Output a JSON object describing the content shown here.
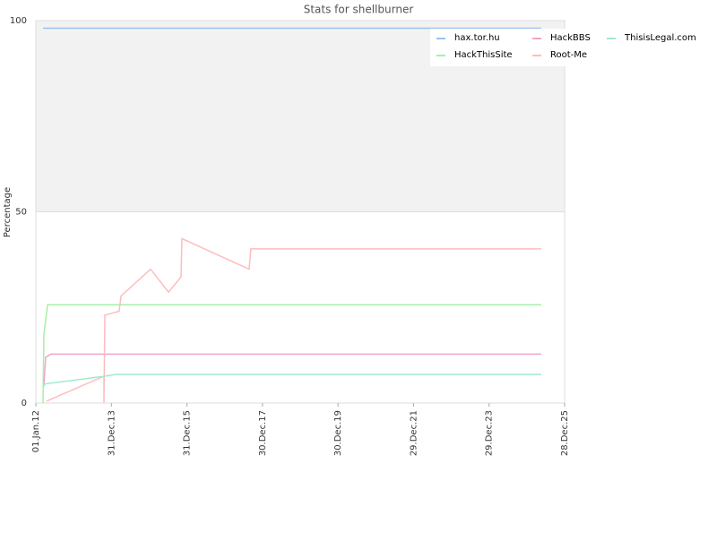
{
  "chart_data": {
    "type": "line",
    "title": "Stats for shellburner",
    "y_label": "Percentage",
    "xlim": [
      "2012-01-01",
      "2025-12-28"
    ],
    "xticks": [
      {
        "value": "2012-01-01",
        "label": "01.Jan.12"
      },
      {
        "value": "2013-12-31",
        "label": "31.Dec.13"
      },
      {
        "value": "2015-12-31",
        "label": "31.Dec.15"
      },
      {
        "value": "2017-12-30",
        "label": "30.Dec.17"
      },
      {
        "value": "2019-12-30",
        "label": "30.Dec.19"
      },
      {
        "value": "2021-12-29",
        "label": "29.Dec.21"
      },
      {
        "value": "2023-12-29",
        "label": "29.Dec.23"
      },
      {
        "value": "2025-12-28",
        "label": "28.Dec.25"
      }
    ],
    "ylim": [
      0,
      100
    ],
    "yticks": [
      0,
      50,
      100
    ],
    "grid": true,
    "band_color": "#f2f2f2",
    "legend": "top-right",
    "series": [
      {
        "name": "hax.tor.hu",
        "color": "#99c2f0",
        "x": [
          "2012-03-10",
          "2025-05-16"
        ],
        "values": [
          98,
          98
        ]
      },
      {
        "name": "HackThisSite",
        "color": "#a6f0a6",
        "x": [
          "2012-03-10",
          "2012-03-19",
          "2012-04-23",
          "2025-05-16"
        ],
        "values": [
          0,
          18,
          25.7,
          25.7
        ]
      },
      {
        "name": "HackBBS",
        "color": "#f0a6c8",
        "x": [
          "2012-03-19",
          "2012-04-05",
          "2012-05-28",
          "2025-05-16"
        ],
        "values": [
          5,
          12,
          12.8,
          12.8
        ]
      },
      {
        "name": "Root-Me",
        "color": "#ffbcbc",
        "x": [
          "2012-04-14",
          "2013-10-20",
          "2013-10-20",
          "2013-10-29",
          "2014-03-16",
          "2014-04-03",
          "2015-01-14",
          "2015-07-06",
          "2015-11-04",
          "2015-11-13",
          "2017-08-23",
          "2017-09-09",
          "2025-05-16"
        ],
        "values": [
          0.5,
          7,
          0,
          23,
          24,
          28,
          35,
          29,
          33,
          43,
          35,
          40.3,
          40.3
        ]
      },
      {
        "name": "ThisisLegal.com",
        "color": "#a0ead0",
        "x": [
          "2012-03-10",
          "2012-03-28",
          "2013-10-20",
          "2014-02-18",
          "2025-05-16"
        ],
        "values": [
          4,
          5,
          7,
          7.5,
          7.5
        ]
      }
    ]
  }
}
